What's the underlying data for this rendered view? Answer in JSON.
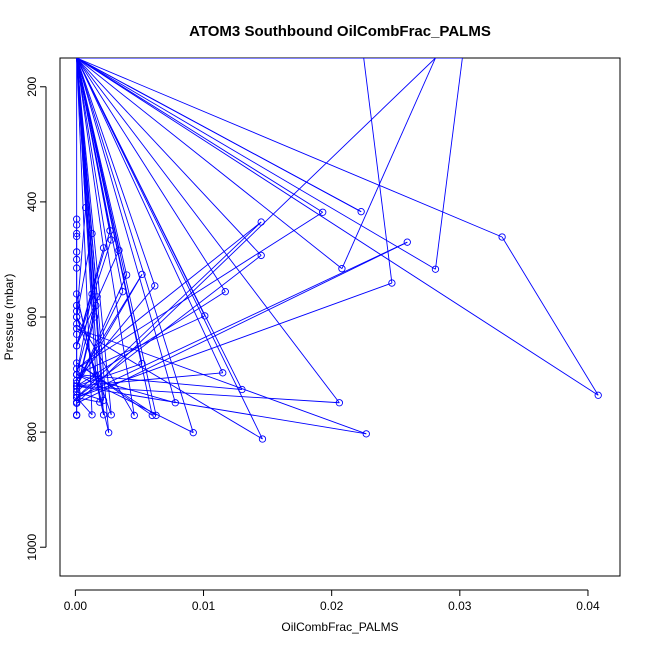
{
  "chart_data": {
    "type": "line",
    "title": "ATOM3 Southbound OilCombFrac_PALMS",
    "xlabel": "OilCombFrac_PALMS",
    "ylabel": "Pressure (mbar)",
    "xlim": [
      -0.0012,
      0.0425
    ],
    "ylim": [
      1050,
      150
    ],
    "y_reversed": true,
    "x_ticks": [
      0,
      0.01,
      0.02,
      0.03,
      0.04
    ],
    "x_tick_labels": [
      "0.00",
      "0.01",
      "0.02",
      "0.03",
      "0.04"
    ],
    "y_ticks": [
      200,
      400,
      600,
      800,
      1000
    ],
    "y_tick_labels": [
      "200",
      "400",
      "600",
      "800",
      "1000"
    ],
    "series_color": "#0000ff",
    "marker": "open-circle",
    "grid": false,
    "legend": "none",
    "points": [
      [
        0.0001,
        150
      ],
      [
        0.0408,
        736
      ],
      [
        0.0333,
        461
      ],
      [
        0.0001,
        150
      ],
      [
        0.0302,
        150
      ],
      [
        0.0281,
        517
      ],
      [
        0.0001,
        150
      ],
      [
        0.0225,
        150
      ],
      [
        0.0247,
        541
      ],
      [
        0.0001,
        740
      ],
      [
        0.0259,
        470
      ],
      [
        0.0001,
        750
      ],
      [
        0.0281,
        150
      ],
      [
        0.0208,
        516
      ],
      [
        0.0001,
        150
      ],
      [
        0.0223,
        417
      ],
      [
        0.0001,
        150
      ],
      [
        0.0193,
        418
      ],
      [
        0.0001,
        690
      ],
      [
        0.0145,
        435
      ],
      [
        0.0001,
        740
      ],
      [
        0.0145,
        493
      ],
      [
        0.0001,
        150
      ],
      [
        0.0117,
        556
      ],
      [
        0.0001,
        720
      ],
      [
        0.0115,
        697
      ],
      [
        0.0001,
        150
      ],
      [
        0.013,
        726
      ],
      [
        0.0001,
        700
      ],
      [
        0.0101,
        598
      ],
      [
        0.0001,
        150
      ],
      [
        0.0146,
        812
      ],
      [
        0.0001,
        620
      ],
      [
        0.0227,
        803
      ],
      [
        0.0001,
        720
      ],
      [
        0.0206,
        749
      ],
      [
        0.0001,
        150
      ],
      [
        0.0078,
        749
      ],
      [
        0.0001,
        700
      ],
      [
        0.0092,
        801
      ],
      [
        0.0001,
        150
      ],
      [
        0.0062,
        546
      ],
      [
        0.0001,
        710
      ],
      [
        0.0052,
        526
      ],
      [
        0.0001,
        720
      ],
      [
        0.0052,
        681
      ],
      [
        0.0001,
        150
      ],
      [
        0.006,
        771
      ],
      [
        0.0001,
        680
      ],
      [
        0.0063,
        771
      ],
      [
        0.0001,
        150
      ],
      [
        0.0046,
        771
      ],
      [
        0.0001,
        600
      ],
      [
        0.0028,
        770
      ],
      [
        0.0001,
        150
      ],
      [
        0.0026,
        801
      ],
      [
        0.0001,
        560
      ],
      [
        0.0022,
        770
      ],
      [
        0.0001,
        150
      ],
      [
        0.0013,
        770
      ],
      [
        0.0001,
        740
      ],
      [
        0.0019,
        748
      ],
      [
        0.0001,
        150
      ],
      [
        0.0022,
        745
      ],
      [
        0.0001,
        730
      ],
      [
        0.0016,
        701
      ],
      [
        0.0001,
        150
      ],
      [
        0.0037,
        556
      ],
      [
        0.0001,
        720
      ],
      [
        0.004,
        527
      ],
      [
        0.0001,
        150
      ],
      [
        0.0034,
        484
      ],
      [
        0.0001,
        650
      ],
      [
        0.0028,
        466
      ],
      [
        0.0001,
        150
      ],
      [
        0.0022,
        480
      ],
      [
        0.0001,
        650
      ],
      [
        0.0027,
        450
      ],
      [
        0.0001,
        150
      ],
      [
        0.0013,
        455
      ],
      [
        0.0001,
        600
      ],
      [
        0.0008,
        410
      ],
      [
        0.0001,
        150
      ],
      [
        0.0017,
        565
      ],
      [
        0.0001,
        700
      ],
      [
        0.0013,
        560
      ],
      [
        0.0001,
        150
      ],
      [
        0.0015,
        600
      ],
      [
        0.0001,
        730
      ],
      [
        0.0016,
        580
      ],
      [
        0.0001,
        150
      ],
      [
        0.0001,
        770
      ],
      [
        0.0001,
        771
      ],
      [
        0.0001,
        748
      ],
      [
        0.0001,
        736
      ],
      [
        0.0001,
        725
      ],
      [
        0.0001,
        715
      ],
      [
        0.0001,
        630
      ],
      [
        0.0001,
        612
      ],
      [
        0.0001,
        590
      ],
      [
        0.0001,
        580
      ],
      [
        0.0001,
        515
      ],
      [
        0.0001,
        500
      ],
      [
        0.0001,
        487
      ],
      [
        0.0001,
        460
      ],
      [
        0.0001,
        455
      ],
      [
        0.0001,
        440
      ],
      [
        0.0001,
        430
      ]
    ]
  }
}
